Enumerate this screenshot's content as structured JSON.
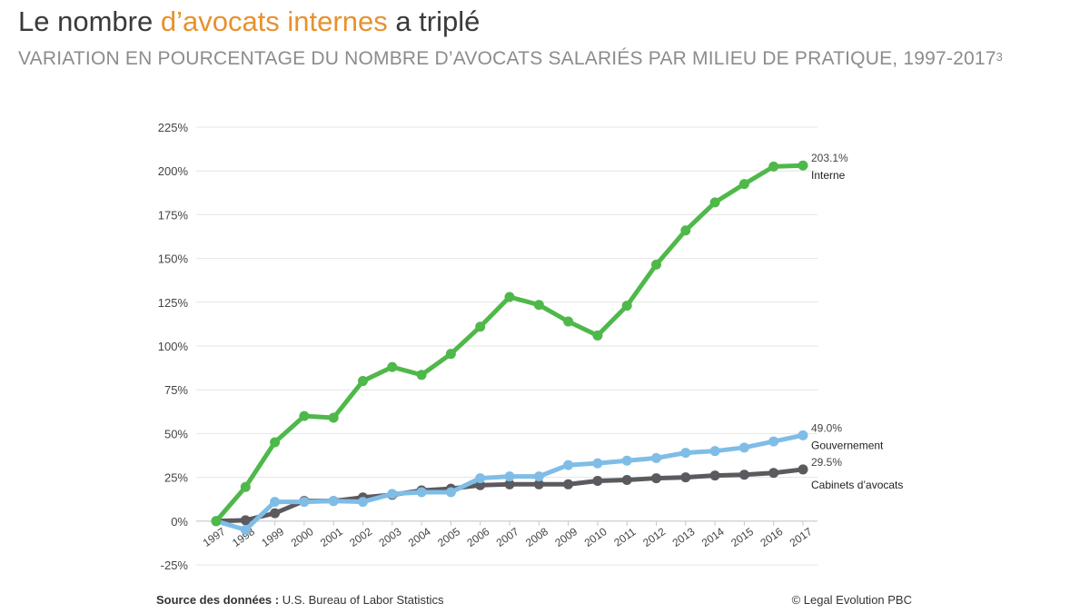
{
  "title": {
    "part1": "Le nombre ",
    "highlight": "d’avocats internes",
    "part2": " a triplé"
  },
  "subtitle": {
    "text": "VARIATION EN POURCENTAGE DU NOMBRE D’AVOCATS SALARIÉS PAR MILIEU DE PRATIQUE, 1997-2017",
    "sup": "3"
  },
  "footer": {
    "source_label": "Source des données :",
    "source_value": " U.S. Bureau of Labor Statistics",
    "copyright": "© Legal Evolution PBC"
  },
  "colors": {
    "highlight": "#e8912d",
    "interne": "#4fb84a",
    "gouvernement": "#7fbde6",
    "cabinets": "#5b5a5f"
  },
  "chart_data": {
    "type": "line",
    "title": "",
    "xlabel": "",
    "ylabel": "",
    "x": [
      "1997",
      "1998",
      "1999",
      "2000",
      "2001",
      "2002",
      "2003",
      "2004",
      "2005",
      "2006",
      "2007",
      "2008",
      "2009",
      "2010",
      "2011",
      "2012",
      "2013",
      "2014",
      "2015",
      "2016",
      "2017"
    ],
    "ylim": [
      -25,
      225
    ],
    "yticks": [
      -25,
      0,
      25,
      50,
      75,
      100,
      125,
      150,
      175,
      200,
      225
    ],
    "ytick_labels": [
      "-25%",
      "0%",
      "25%",
      "50%",
      "75%",
      "100%",
      "125%",
      "150%",
      "175%",
      "200%",
      "225%"
    ],
    "grid": true,
    "series": [
      {
        "name": "Interne",
        "color": "#4fb84a",
        "end_label": "203.1%",
        "values": [
          0,
          19.5,
          45,
          60,
          59,
          80,
          88,
          83.5,
          95.5,
          111,
          128,
          123.5,
          114,
          106,
          123,
          146.5,
          166,
          182,
          192.5,
          202.5,
          203.1
        ]
      },
      {
        "name": "Gouvernement",
        "color": "#7fbde6",
        "end_label": "49.0%",
        "values": [
          0,
          -5,
          11,
          11,
          11.5,
          11,
          15.5,
          16.5,
          16.5,
          24.5,
          25.5,
          25.5,
          32,
          33,
          34.5,
          36,
          39,
          40,
          42,
          45.5,
          49.0
        ]
      },
      {
        "name": "Cabinets d’avocats",
        "color": "#5b5a5f",
        "end_label": "29.5%",
        "values": [
          0,
          0.5,
          4.5,
          11.5,
          11.5,
          13.5,
          15,
          17.5,
          18.5,
          20.5,
          21,
          21,
          21,
          23,
          23.5,
          24.5,
          25,
          26,
          26.5,
          27.5,
          29.5
        ]
      }
    ]
  }
}
